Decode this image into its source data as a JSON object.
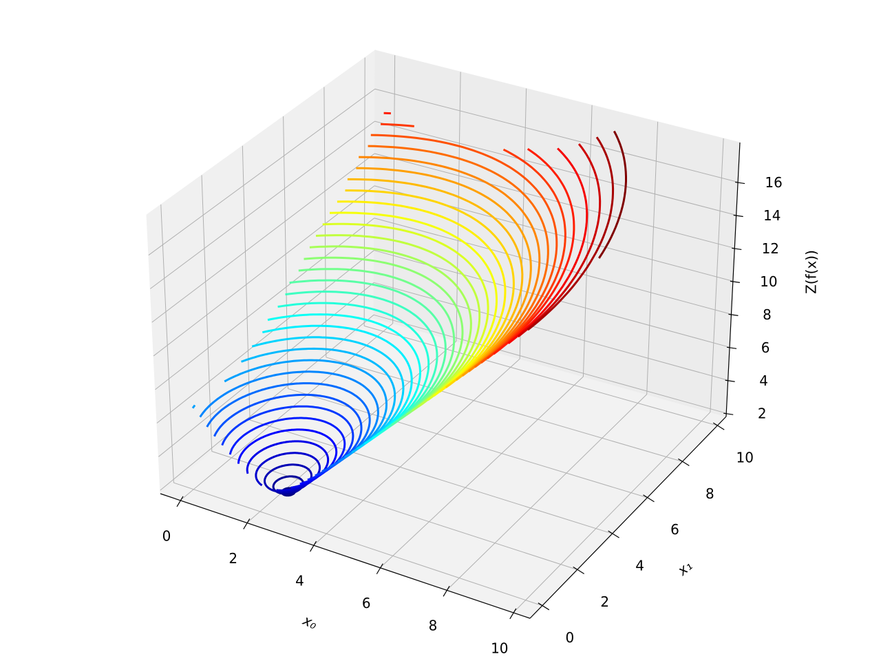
{
  "chart_data": {
    "type": "contour3d",
    "xlabel": "x₀",
    "ylabel": "x₁",
    "zlabel": "Z(f(x))",
    "xlim": [
      -0.6,
      10.5
    ],
    "ylim": [
      -0.7,
      10.5
    ],
    "zlim": [
      1.8,
      18.4
    ],
    "xticks": [
      0,
      2,
      4,
      6,
      8,
      10
    ],
    "yticks": [
      0,
      2,
      4,
      6,
      8,
      10
    ],
    "zticks": [
      2,
      4,
      6,
      8,
      10,
      12,
      14,
      16
    ],
    "levels": [
      2.2,
      2.6,
      3.0,
      3.4,
      3.8,
      4.2,
      4.6,
      5.0,
      5.4,
      5.8,
      6.2,
      6.6,
      7.0,
      7.4,
      7.8,
      8.2,
      8.6,
      9.0,
      9.4,
      9.8,
      10.2,
      10.6,
      11.0,
      11.4,
      11.8,
      12.2,
      12.6,
      13.0,
      13.4,
      13.8,
      14.2,
      14.6,
      15.0,
      15.4,
      16.0,
      16.6,
      17.2,
      17.8
    ],
    "colormap": "jet",
    "grid": true
  }
}
